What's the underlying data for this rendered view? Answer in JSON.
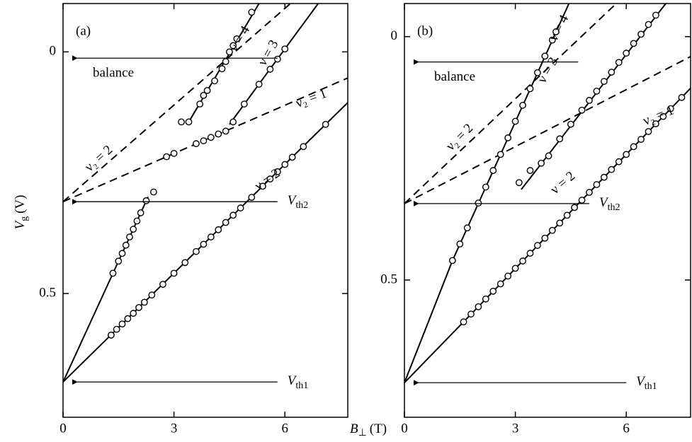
{
  "x_label": {
    "main": "B",
    "sub": "⊥",
    "unit": "(T)"
  },
  "y_label": {
    "main": "V",
    "sub": "g",
    "unit": "(V)"
  },
  "chart_data": [
    {
      "type": "line",
      "panel_label": "(a)",
      "xlim": [
        0,
        7.7
      ],
      "ylim": [
        0.756,
        -0.1
      ],
      "xticks": [
        0,
        3,
        6
      ],
      "yticks": [
        0,
        0.5
      ],
      "color": "#000000",
      "series": [
        {
          "style": "solid",
          "x": [
            0,
            7.7
          ],
          "values": [
            0.683,
            0.105
          ]
        },
        {
          "style": "solid",
          "x": [
            0,
            2.3
          ],
          "values": [
            0.683,
            0.3
          ]
        },
        {
          "style": "solid",
          "x": [
            4.5,
            6.9
          ],
          "values": [
            0.15,
            -0.1
          ]
        },
        {
          "style": "solid",
          "x": [
            3.4,
            5.3
          ],
          "values": [
            0.145,
            -0.1
          ]
        },
        {
          "style": "dashed",
          "x": [
            0,
            6.15
          ],
          "values": [
            0.31,
            -0.1
          ]
        },
        {
          "style": "dashed",
          "x": [
            0,
            7.7
          ],
          "values": [
            0.31,
            0.054
          ]
        },
        {
          "style": "points",
          "x": [
            1.3,
            1.45,
            1.6,
            1.75,
            1.9,
            2.05,
            2.2,
            2.4,
            2.7,
            3.0,
            3.3,
            3.6,
            3.8,
            4.0,
            4.2,
            4.4,
            4.6,
            4.8,
            5.1,
            5.4,
            5.6,
            5.8,
            6.0,
            6.2,
            6.5,
            7.1
          ],
          "values": [
            0.586,
            0.574,
            0.563,
            0.552,
            0.541,
            0.529,
            0.518,
            0.503,
            0.481,
            0.458,
            0.436,
            0.413,
            0.398,
            0.383,
            0.368,
            0.353,
            0.338,
            0.323,
            0.301,
            0.278,
            0.263,
            0.248,
            0.233,
            0.218,
            0.196,
            0.15
          ]
        },
        {
          "style": "points",
          "x": [
            1.35,
            1.5,
            1.6,
            1.7,
            1.8,
            1.9,
            2.0,
            2.1,
            2.25,
            2.45
          ],
          "values": [
            0.458,
            0.433,
            0.417,
            0.4,
            0.383,
            0.367,
            0.35,
            0.333,
            0.308,
            0.29
          ]
        },
        {
          "style": "points",
          "x": [
            2.8,
            3.0,
            3.6,
            3.8,
            4.0,
            4.2,
            4.4,
            4.6
          ],
          "values": [
            0.217,
            0.21,
            0.19,
            0.184,
            0.177,
            0.17,
            0.164,
            0.145
          ]
        },
        {
          "style": "points",
          "x": [
            4.9,
            5.3,
            5.6,
            5.8,
            6.0
          ],
          "values": [
            0.108,
            0.067,
            0.036,
            0.015,
            -0.006
          ]
        },
        {
          "style": "points",
          "x": [
            3.2,
            3.4,
            3.7,
            3.8,
            3.9,
            4.1,
            4.3,
            4.4,
            4.5,
            4.6,
            4.7,
            5.1
          ],
          "values": [
            0.145,
            0.145,
            0.108,
            0.09,
            0.08,
            0.06,
            0.035,
            0.02,
            0.0,
            -0.013,
            -0.027,
            -0.082
          ]
        }
      ],
      "annotations": [
        {
          "text": "balance",
          "x": 5.8,
          "y": 0.013
        },
        {
          "text": {
            "main": "V",
            "sub": "th2"
          },
          "x": 5.8,
          "y": 0.31
        },
        {
          "text": {
            "main": "V",
            "sub": "th1"
          },
          "x": 5.8,
          "y": 0.683
        },
        {
          "text": "ν = 4",
          "x": 4.8,
          "y": -0.026
        },
        {
          "text": "ν = 3",
          "x": 5.57,
          "y": 0.003
        },
        {
          "text": "ν₂ = 1",
          "x": 6.72,
          "y": 0.098
        },
        {
          "text": "ν₂ = 2",
          "x": 0.98,
          "y": 0.222
        },
        {
          "text": "ν = 2",
          "x": 5.54,
          "y": 0.266
        }
      ]
    },
    {
      "type": "line",
      "panel_label": "(b)",
      "xlim": [
        0,
        7.74
      ],
      "ylim": [
        0.782,
        -0.068
      ],
      "xticks": [
        0,
        3,
        6
      ],
      "yticks": [
        0,
        0.5
      ],
      "color": "#000000",
      "series": [
        {
          "style": "solid",
          "x": [
            0,
            7.74
          ],
          "values": [
            0.711,
            0.106
          ]
        },
        {
          "style": "solid",
          "x": [
            0,
            1.3,
            4.45
          ],
          "values": [
            0.711,
            0.46,
            -0.068
          ]
        },
        {
          "style": "solid",
          "x": [
            3.16,
            7.07
          ],
          "values": [
            0.314,
            -0.068
          ]
        },
        {
          "style": "dashed",
          "x": [
            0,
            5.73
          ],
          "values": [
            0.343,
            -0.068
          ]
        },
        {
          "style": "dashed",
          "x": [
            0,
            7.74
          ],
          "values": [
            0.343,
            0.041
          ]
        },
        {
          "style": "points",
          "x": [
            1.6,
            1.8,
            2.0,
            2.2,
            2.4,
            2.6,
            2.8,
            3.0,
            3.2,
            3.4,
            3.6,
            3.8,
            4.0,
            4.2,
            4.4,
            4.6,
            4.8,
            5.0,
            5.2,
            5.4,
            5.6,
            5.8,
            6.0,
            6.2,
            6.4,
            6.6,
            6.8,
            7.0,
            7.2,
            7.5
          ],
          "values": [
            0.586,
            0.57,
            0.555,
            0.539,
            0.523,
            0.508,
            0.492,
            0.476,
            0.461,
            0.445,
            0.429,
            0.414,
            0.398,
            0.383,
            0.367,
            0.351,
            0.336,
            0.32,
            0.304,
            0.289,
            0.273,
            0.257,
            0.242,
            0.226,
            0.211,
            0.195,
            0.179,
            0.164,
            0.148,
            0.125
          ]
        },
        {
          "style": "points",
          "x": [
            1.3,
            1.5,
            1.7,
            2.0,
            2.2,
            2.4,
            2.6,
            2.8,
            3.0,
            3.2,
            3.4,
            3.6,
            3.8,
            4.0,
            4.1
          ],
          "values": [
            0.46,
            0.426,
            0.393,
            0.342,
            0.309,
            0.275,
            0.242,
            0.208,
            0.174,
            0.141,
            0.107,
            0.074,
            0.04,
            0.007,
            -0.01
          ]
        },
        {
          "style": "points",
          "x": [
            3.1,
            3.4,
            3.7,
            3.9,
            4.2,
            4.5,
            4.8,
            5.0,
            5.2,
            5.4,
            5.6,
            5.8,
            6.0,
            6.2,
            6.4,
            6.6,
            6.8
          ],
          "values": [
            0.3,
            0.275,
            0.26,
            0.245,
            0.21,
            0.18,
            0.151,
            0.131,
            0.112,
            0.092,
            0.073,
            0.053,
            0.034,
            0.014,
            -0.005,
            -0.025,
            -0.044
          ]
        }
      ],
      "annotations": [
        {
          "text": "balance",
          "x": 4.7,
          "y": 0.052
        },
        {
          "text": {
            "main": "V",
            "sub": "th2"
          },
          "x": 5.0,
          "y": 0.343
        },
        {
          "text": {
            "main": "V",
            "sub": "th1"
          },
          "x": 6.0,
          "y": 0.711
        },
        {
          "text": "ν = 4",
          "x": 4.2,
          "y": -0.017
        },
        {
          "text": "ν = 3",
          "x": 3.9,
          "y": 0.07
        },
        {
          "text": "ν₂ = 1",
          "x": 6.88,
          "y": 0.164
        },
        {
          "text": "ν₂ = 2",
          "x": 1.51,
          "y": 0.208
        },
        {
          "text": "ν = 2",
          "x": 4.3,
          "y": 0.302
        }
      ]
    }
  ]
}
